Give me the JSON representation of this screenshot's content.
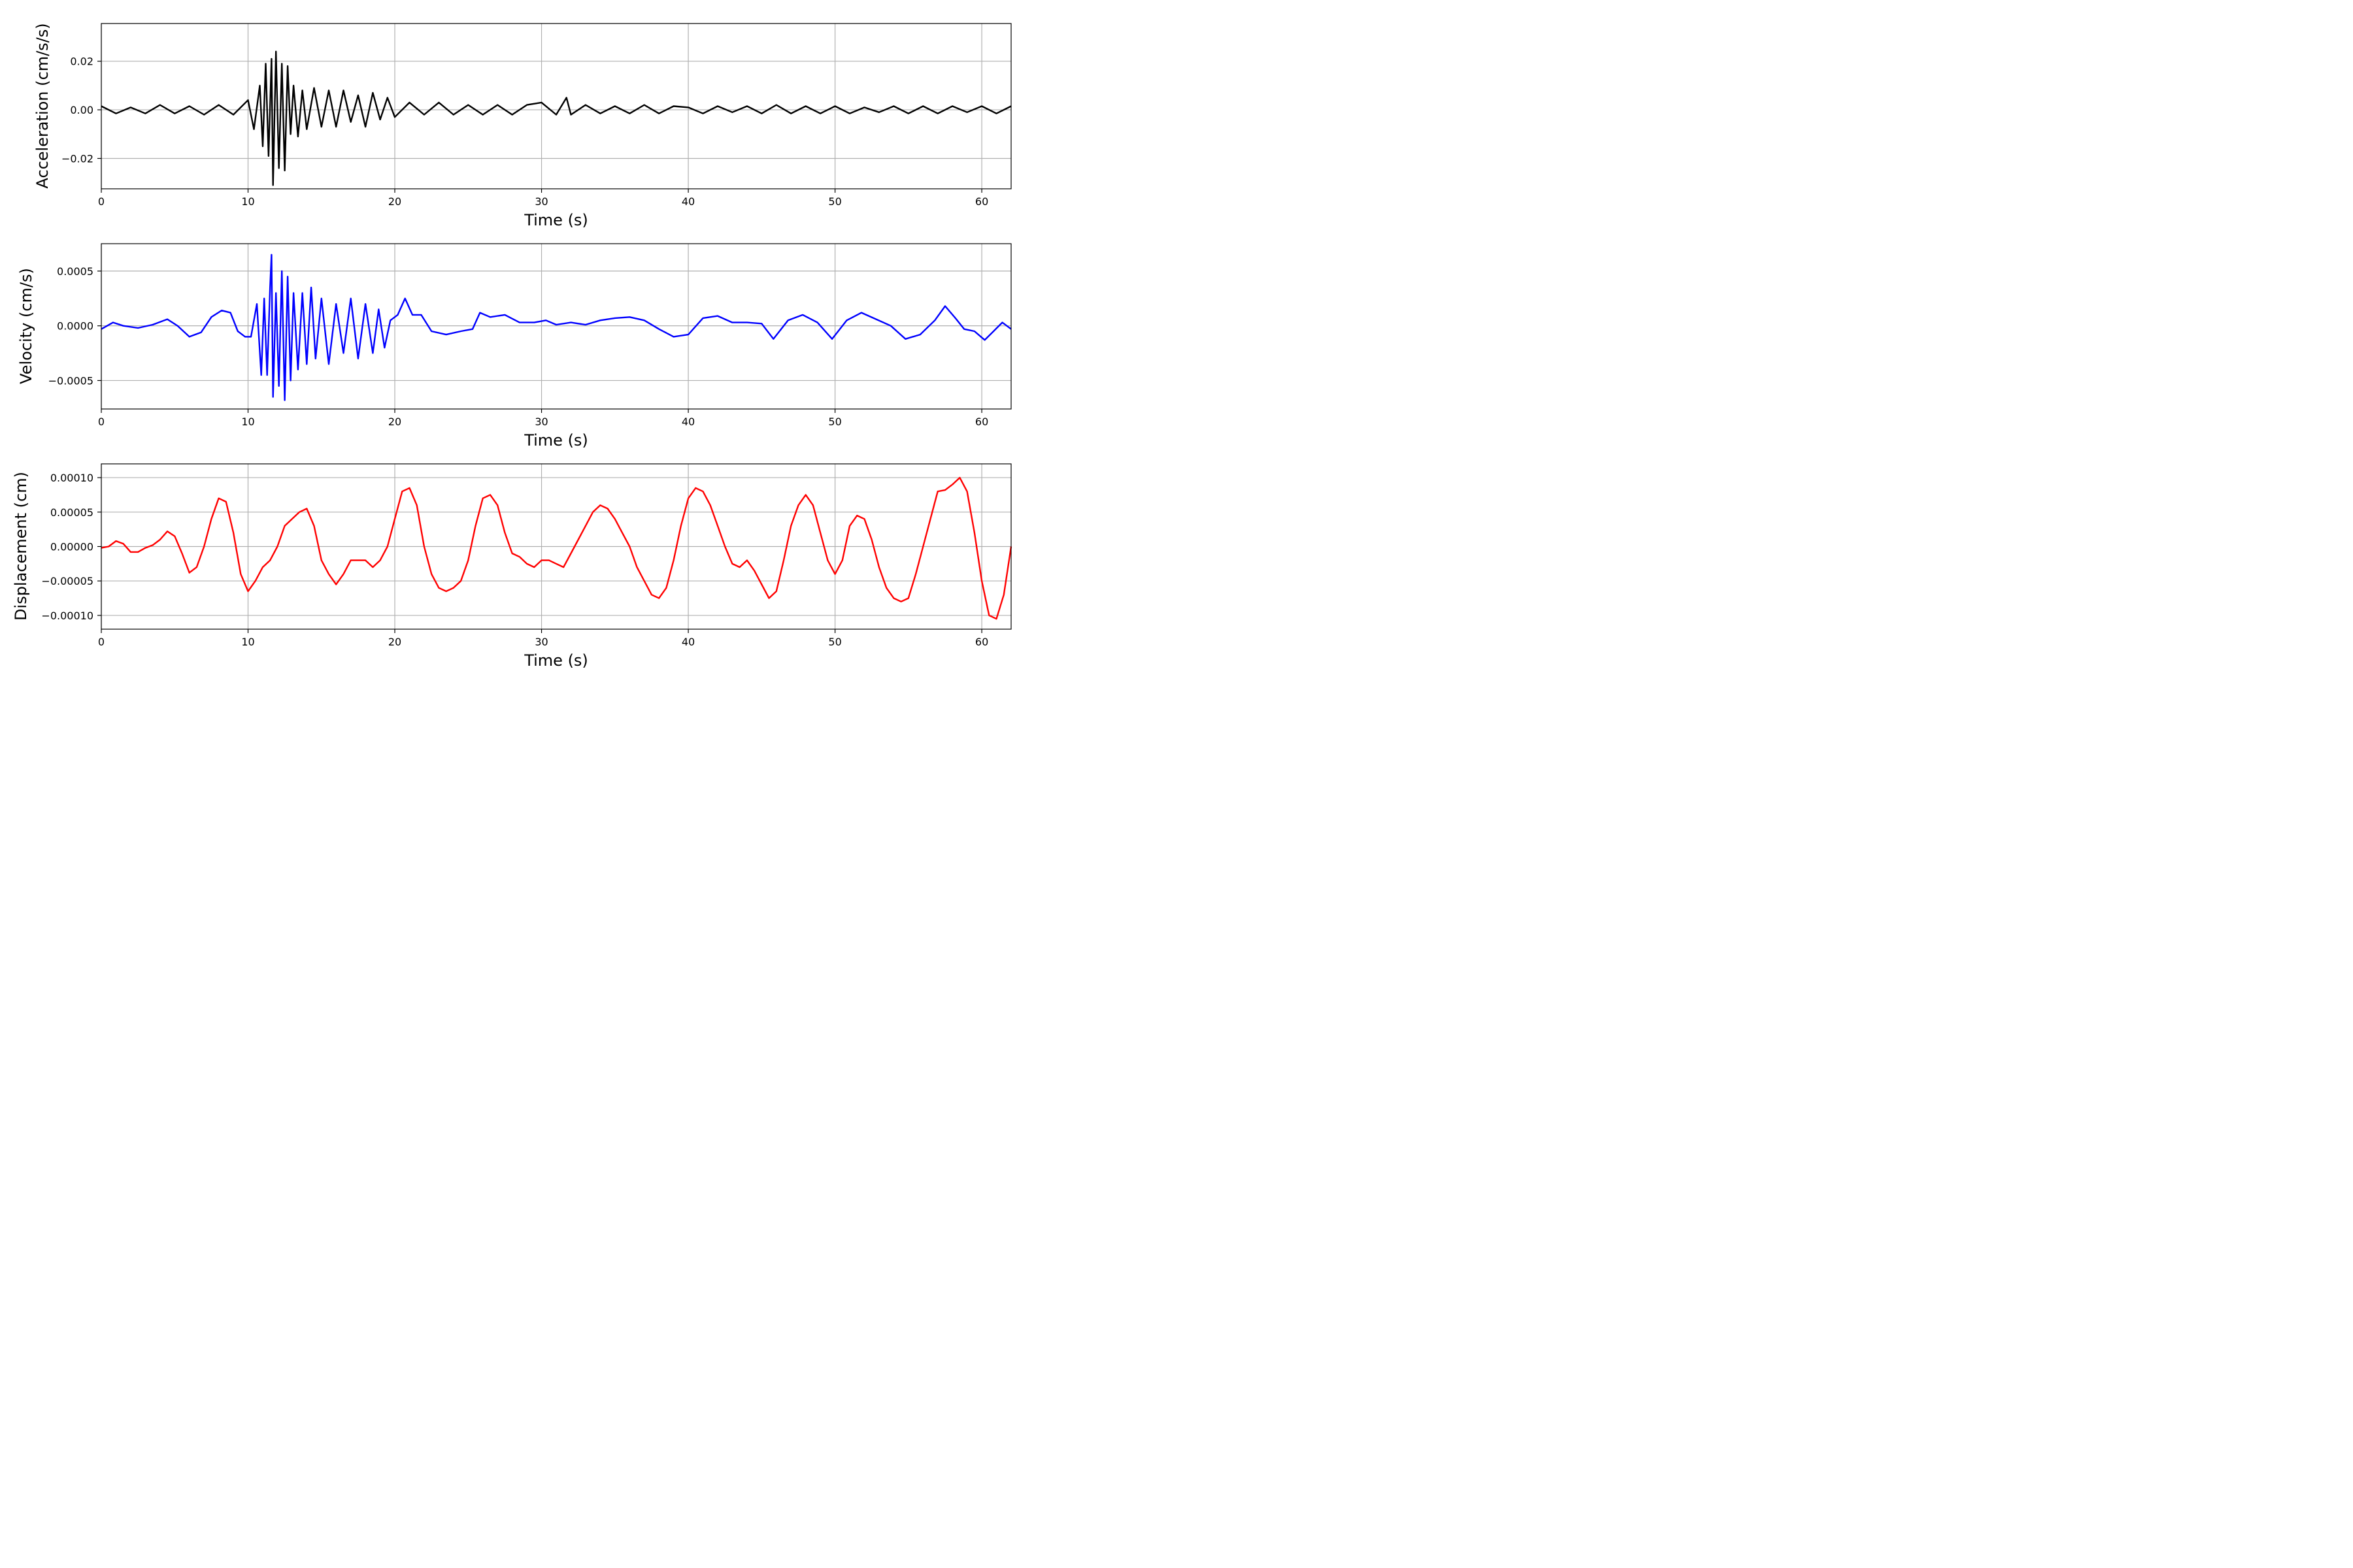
{
  "chart_data": [
    {
      "type": "line",
      "xlabel": "Time (s)",
      "ylabel": "Acceleration (cm/s/s)",
      "xlim": [
        0,
        62
      ],
      "ylim": [
        -0.0325,
        0.0355
      ],
      "xticks": [
        0,
        10,
        20,
        30,
        40,
        50,
        60
      ],
      "xtick_labels": [
        "0",
        "10",
        "20",
        "30",
        "40",
        "50",
        "60"
      ],
      "yticks": [
        -0.02,
        0.0,
        0.02
      ],
      "ytick_labels": [
        "−0.02",
        "0.00",
        "0.02"
      ],
      "grid": true,
      "series": [
        {
          "color": "#000000",
          "x": [
            0,
            1,
            2,
            3,
            4,
            5,
            6,
            7,
            8,
            9,
            10,
            10.4,
            10.8,
            11.0,
            11.2,
            11.4,
            11.6,
            11.7,
            11.9,
            12.1,
            12.3,
            12.5,
            12.7,
            12.9,
            13.1,
            13.4,
            13.7,
            14.0,
            14.5,
            15.0,
            15.5,
            16.0,
            16.5,
            17.0,
            17.5,
            18.0,
            18.5,
            19.0,
            19.5,
            20.0,
            21,
            22,
            23,
            24,
            25,
            26,
            27,
            28,
            29,
            30,
            31,
            31.7,
            32,
            33,
            34,
            35,
            36,
            37,
            38,
            39,
            40,
            41,
            42,
            43,
            44,
            45,
            46,
            47,
            48,
            49,
            50,
            51,
            52,
            53,
            54,
            55,
            56,
            57,
            58,
            59,
            60,
            61,
            62
          ],
          "y": [
            0.0015,
            -0.0015,
            0.001,
            -0.0015,
            0.002,
            -0.0015,
            0.0015,
            -0.002,
            0.002,
            -0.002,
            0.004,
            -0.008,
            0.01,
            -0.015,
            0.019,
            -0.019,
            0.021,
            -0.031,
            0.024,
            -0.024,
            0.019,
            -0.025,
            0.018,
            -0.01,
            0.01,
            -0.011,
            0.008,
            -0.008,
            0.009,
            -0.007,
            0.008,
            -0.007,
            0.008,
            -0.005,
            0.006,
            -0.007,
            0.007,
            -0.004,
            0.005,
            -0.003,
            0.003,
            -0.002,
            0.003,
            -0.002,
            0.002,
            -0.002,
            0.002,
            -0.002,
            0.002,
            0.003,
            -0.002,
            0.005,
            -0.002,
            0.002,
            -0.0015,
            0.0015,
            -0.0015,
            0.002,
            -0.0015,
            0.0015,
            0.001,
            -0.0015,
            0.0015,
            -0.001,
            0.0015,
            -0.0015,
            0.002,
            -0.0015,
            0.0015,
            -0.0015,
            0.0015,
            -0.0015,
            0.001,
            -0.001,
            0.0015,
            -0.0015,
            0.0015,
            -0.0015,
            0.0015,
            -0.001,
            0.0015,
            -0.0015,
            0.0015
          ]
        }
      ]
    },
    {
      "type": "line",
      "xlabel": "Time (s)",
      "ylabel": "Velocity (cm/s)",
      "xlim": [
        0,
        62
      ],
      "ylim": [
        -0.00076,
        0.00075
      ],
      "xticks": [
        0,
        10,
        20,
        30,
        40,
        50,
        60
      ],
      "xtick_labels": [
        "0",
        "10",
        "20",
        "30",
        "40",
        "50",
        "60"
      ],
      "yticks": [
        -0.0005,
        0.0,
        0.0005
      ],
      "ytick_labels": [
        "−0.0005",
        "0.0000",
        "0.0005"
      ],
      "grid": true,
      "series": [
        {
          "color": "#0000ff",
          "x": [
            0,
            0.8,
            1.5,
            2.5,
            3.5,
            4.5,
            5.2,
            6.0,
            6.8,
            7.5,
            8.2,
            8.8,
            9.3,
            9.8,
            10.2,
            10.6,
            10.9,
            11.1,
            11.3,
            11.5,
            11.6,
            11.7,
            11.9,
            12.1,
            12.3,
            12.5,
            12.7,
            12.9,
            13.1,
            13.4,
            13.7,
            14.0,
            14.3,
            14.6,
            15.0,
            15.5,
            16.0,
            16.5,
            17.0,
            17.5,
            18.0,
            18.5,
            18.9,
            19.3,
            19.7,
            20.2,
            20.7,
            21.2,
            21.8,
            22.5,
            23.5,
            24.5,
            25.3,
            25.8,
            26.5,
            27.5,
            28.5,
            29.5,
            30.3,
            31.0,
            32.0,
            33.0,
            34.0,
            35.0,
            36.0,
            37.0,
            38.0,
            39.0,
            40.0,
            41.0,
            42.0,
            43.0,
            44.0,
            45.0,
            45.8,
            46.8,
            47.8,
            48.8,
            49.8,
            50.8,
            51.8,
            52.8,
            53.8,
            54.8,
            55.8,
            56.8,
            57.5,
            58.2,
            58.8,
            59.5,
            60.2,
            60.8,
            61.4,
            62.0
          ],
          "y": [
            -3e-05,
            3e-05,
            0.0,
            -2e-05,
            1e-05,
            6e-05,
            0.0,
            -0.0001,
            -6e-05,
            8e-05,
            0.00014,
            0.00012,
            -5e-05,
            -0.0001,
            -0.0001,
            0.0002,
            -0.00045,
            0.00025,
            -0.00045,
            0.00035,
            0.00065,
            -0.00065,
            0.0003,
            -0.00055,
            0.0005,
            -0.00068,
            0.00045,
            -0.0005,
            0.0003,
            -0.0004,
            0.0003,
            -0.00035,
            0.00035,
            -0.0003,
            0.00025,
            -0.00035,
            0.0002,
            -0.00025,
            0.00025,
            -0.0003,
            0.0002,
            -0.00025,
            0.00015,
            -0.0002,
            5e-05,
            0.0001,
            0.00025,
            0.0001,
            0.0001,
            -5e-05,
            -8e-05,
            -5e-05,
            -3e-05,
            0.00012,
            8e-05,
            0.0001,
            3e-05,
            3e-05,
            5e-05,
            1e-05,
            3e-05,
            1e-05,
            5e-05,
            7e-05,
            8e-05,
            5e-05,
            -3e-05,
            -0.0001,
            -8e-05,
            7e-05,
            9e-05,
            3e-05,
            3e-05,
            2e-05,
            -0.00012,
            5e-05,
            0.0001,
            3e-05,
            -0.00012,
            5e-05,
            0.00012,
            6e-05,
            0.0,
            -0.00012,
            -8e-05,
            5e-05,
            0.00018,
            7e-05,
            -3e-05,
            -5e-05,
            -0.00013,
            -5e-05,
            3e-05,
            -3e-05
          ]
        }
      ]
    },
    {
      "type": "line",
      "xlabel": "Time (s)",
      "ylabel": "Displacement (cm)",
      "xlim": [
        0,
        62
      ],
      "ylim": [
        -0.00012,
        0.00012
      ],
      "xticks": [
        0,
        10,
        20,
        30,
        40,
        50,
        60
      ],
      "xtick_labels": [
        "0",
        "10",
        "20",
        "30",
        "40",
        "50",
        "60"
      ],
      "yticks": [
        -0.0001,
        -5e-05,
        0.0,
        5e-05,
        0.0001
      ],
      "ytick_labels": [
        "−0.00010",
        "−0.00005",
        "0.00000",
        "0.00005",
        "0.00010"
      ],
      "grid": true,
      "series": [
        {
          "color": "#ff0000",
          "x": [
            0,
            0.5,
            1.0,
            1.5,
            2.0,
            2.5,
            3.0,
            3.5,
            4.0,
            4.5,
            5.0,
            5.5,
            6.0,
            6.5,
            7.0,
            7.5,
            8.0,
            8.5,
            9.0,
            9.5,
            10.0,
            10.5,
            11.0,
            11.5,
            12.0,
            12.5,
            13.0,
            13.5,
            14.0,
            14.5,
            15.0,
            15.5,
            16.0,
            16.5,
            17.0,
            17.5,
            18.0,
            18.5,
            19.0,
            19.5,
            20.0,
            20.5,
            21.0,
            21.5,
            22.0,
            22.5,
            23.0,
            23.5,
            24.0,
            24.5,
            25.0,
            25.5,
            26.0,
            26.5,
            27.0,
            27.5,
            28.0,
            28.5,
            29.0,
            29.5,
            30.0,
            30.5,
            31.0,
            31.5,
            32.0,
            32.5,
            33.0,
            33.5,
            34.0,
            34.5,
            35.0,
            35.5,
            36.0,
            36.5,
            37.0,
            37.5,
            38.0,
            38.5,
            39.0,
            39.5,
            40.0,
            40.5,
            41.0,
            41.5,
            42.0,
            42.5,
            43.0,
            43.5,
            44.0,
            44.5,
            45.0,
            45.5,
            46.0,
            46.5,
            47.0,
            47.5,
            48.0,
            48.5,
            49.0,
            49.5,
            50.0,
            50.5,
            51.0,
            51.5,
            52.0,
            52.5,
            53.0,
            53.5,
            54.0,
            54.5,
            55.0,
            55.5,
            56.0,
            56.5,
            57.0,
            57.5,
            58.0,
            58.5,
            59.0,
            59.5,
            60.0,
            60.5,
            61.0,
            61.5,
            62.0
          ],
          "y": [
            -2e-06,
            0.0,
            8e-06,
            4e-06,
            -8e-06,
            -8e-06,
            -2e-06,
            2e-06,
            1e-05,
            2.2e-05,
            1.5e-05,
            -1e-05,
            -3.8e-05,
            -3e-05,
            0.0,
            4e-05,
            7e-05,
            6.5e-05,
            2e-05,
            -4e-05,
            -6.5e-05,
            -5e-05,
            -3e-05,
            -2e-05,
            0.0,
            3e-05,
            4e-05,
            5e-05,
            5.5e-05,
            3e-05,
            -2e-05,
            -4e-05,
            -5.5e-05,
            -4e-05,
            -2e-05,
            -2e-05,
            -2e-05,
            -3e-05,
            -2e-05,
            0.0,
            4e-05,
            8e-05,
            8.5e-05,
            6e-05,
            0.0,
            -4e-05,
            -6e-05,
            -6.5e-05,
            -6e-05,
            -5e-05,
            -2e-05,
            3e-05,
            7e-05,
            7.5e-05,
            6e-05,
            2e-05,
            -1e-05,
            -1.5e-05,
            -2.5e-05,
            -3e-05,
            -2e-05,
            -2e-05,
            -2.5e-05,
            -3e-05,
            -1e-05,
            1e-05,
            3e-05,
            5e-05,
            6e-05,
            5.5e-05,
            4e-05,
            2e-05,
            0.0,
            -3e-05,
            -5e-05,
            -7e-05,
            -7.5e-05,
            -6e-05,
            -2e-05,
            3e-05,
            7e-05,
            8.5e-05,
            8e-05,
            6e-05,
            3e-05,
            0.0,
            -2.5e-05,
            -3e-05,
            -2e-05,
            -3.5e-05,
            -5.5e-05,
            -7.5e-05,
            -6.5e-05,
            -2e-05,
            3e-05,
            6e-05,
            7.5e-05,
            6e-05,
            2e-05,
            -2e-05,
            -4e-05,
            -2e-05,
            3e-05,
            4.5e-05,
            4e-05,
            1e-05,
            -3e-05,
            -6e-05,
            -7.5e-05,
            -8e-05,
            -7.5e-05,
            -4e-05,
            0.0,
            4e-05,
            8e-05,
            8.2e-05,
            9e-05,
            0.0001,
            8e-05,
            2e-05,
            -5e-05,
            -0.0001,
            -0.000105,
            -7e-05,
            0.0
          ]
        }
      ]
    }
  ]
}
